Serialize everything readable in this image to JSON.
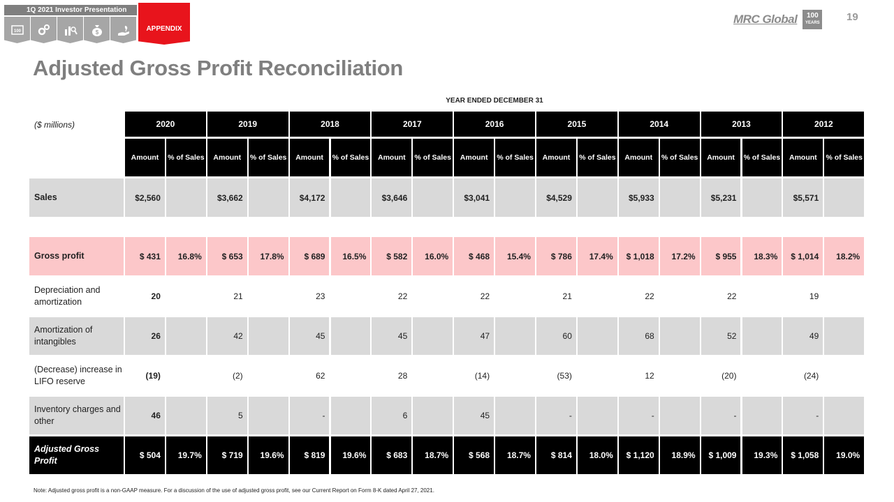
{
  "nav": {
    "title": "1Q 2021 Investor Presentation",
    "tabs": [
      {
        "icon": "100-years-icon"
      },
      {
        "icon": "gears-icon"
      },
      {
        "icon": "analysis-icon"
      },
      {
        "icon": "money-bag-icon"
      },
      {
        "icon": "hand-growth-icon"
      }
    ],
    "appendix": "APPENDIX"
  },
  "logo": {
    "text": "MRC Global",
    "badge_top": "100",
    "badge_bottom": "YEARS"
  },
  "page_number": "19",
  "page_title": "Adjusted Gross Profit Reconciliation",
  "year_heading": "YEAR ENDED DECEMBER 31",
  "unit_label": "($ millions)",
  "table": {
    "years": [
      "2020",
      "2019",
      "2018",
      "2017",
      "2016",
      "2015",
      "2014",
      "2013",
      "2012"
    ],
    "sub_amount": "Amount",
    "sub_pct": "% of Sales",
    "rows": [
      {
        "label": "Sales",
        "amounts": [
          "$2,560",
          "$3,662",
          "$4,172",
          "$3,646",
          "$3,041",
          "$4,529",
          "$5,933",
          "$5,231",
          "$5,571"
        ],
        "pcts": [
          "",
          "",
          "",
          "",
          "",
          "",
          "",
          "",
          ""
        ]
      },
      {
        "label": "Gross profit",
        "amounts": [
          "$ 431",
          "$ 653",
          "$ 689",
          "$ 582",
          "$ 468",
          "$ 786",
          "$ 1,018",
          "$ 955",
          "$ 1,014"
        ],
        "pcts": [
          "16.8%",
          "17.8%",
          "16.5%",
          "16.0%",
          "15.4%",
          "17.4%",
          "17.2%",
          "18.3%",
          "18.2%"
        ]
      },
      {
        "label": "Depreciation and amortization",
        "amounts": [
          "20",
          "21",
          "23",
          "22",
          "22",
          "21",
          "22",
          "22",
          "19"
        ],
        "pcts": [
          "",
          "",
          "",
          "",
          "",
          "",
          "",
          "",
          ""
        ]
      },
      {
        "label": "Amortization of intangibles",
        "amounts": [
          "26",
          "42",
          "45",
          "45",
          "47",
          "60",
          "68",
          "52",
          "49"
        ],
        "pcts": [
          "",
          "",
          "",
          "",
          "",
          "",
          "",
          "",
          ""
        ]
      },
      {
        "label": "(Decrease) increase in LIFO reserve",
        "amounts": [
          "(19)",
          "(2)",
          "62",
          "28",
          "(14)",
          "(53)",
          "12",
          "(20)",
          "(24)"
        ],
        "pcts": [
          "",
          "",
          "",
          "",
          "",
          "",
          "",
          "",
          ""
        ]
      },
      {
        "label": "Inventory charges and other",
        "amounts": [
          "46",
          "5",
          "-",
          "6",
          "45",
          "-",
          "-",
          "-",
          "-"
        ],
        "pcts": [
          "",
          "",
          "",
          "",
          "",
          "",
          "",
          "",
          ""
        ]
      },
      {
        "label": "Adjusted Gross Profit",
        "amounts": [
          "$ 504",
          "$ 719",
          "$ 819",
          "$ 683",
          "$ 568",
          "$ 814",
          "$ 1,120",
          "$ 1,009",
          "$ 1,058"
        ],
        "pcts": [
          "19.7%",
          "19.6%",
          "19.6%",
          "18.7%",
          "18.7%",
          "18.0%",
          "18.9%",
          "19.3%",
          "19.0%"
        ]
      }
    ]
  },
  "footnote": "Note: Adjusted gross profit is a non-GAAP measure. For a discussion of the use of adjusted gross profit, see our Current Report on Form 8-K dated April 27, 2021."
}
